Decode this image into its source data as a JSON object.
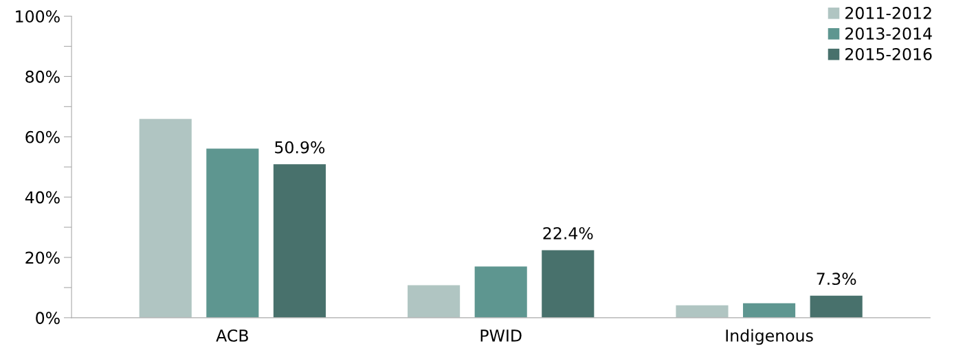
{
  "chart_data": {
    "type": "bar",
    "categories": [
      "ACB",
      "PWID",
      "Indigenous"
    ],
    "series": [
      {
        "name": "2011-2012",
        "color": "#b0c5c2",
        "values": [
          65.9,
          10.8,
          4.1
        ]
      },
      {
        "name": "2013-2014",
        "color": "#5e9690",
        "values": [
          56.1,
          17.0,
          4.8
        ]
      },
      {
        "name": "2015-2016",
        "color": "#48716c",
        "values": [
          50.9,
          22.4,
          7.3
        ],
        "value_labels": [
          "50.9%",
          "22.4%",
          "7.3%"
        ]
      }
    ],
    "ylim": [
      0,
      100
    ],
    "yticks": [
      {
        "value": 0,
        "label": "0%"
      },
      {
        "value": 10,
        "label": null
      },
      {
        "value": 20,
        "label": "20%"
      },
      {
        "value": 30,
        "label": null
      },
      {
        "value": 40,
        "label": "40%"
      },
      {
        "value": 50,
        "label": null
      },
      {
        "value": 60,
        "label": "60%"
      },
      {
        "value": 70,
        "label": null
      },
      {
        "value": 80,
        "label": "80%"
      },
      {
        "value": 90,
        "label": null
      },
      {
        "value": 100,
        "label": "100%"
      }
    ],
    "grid": false,
    "legend": "top right"
  }
}
